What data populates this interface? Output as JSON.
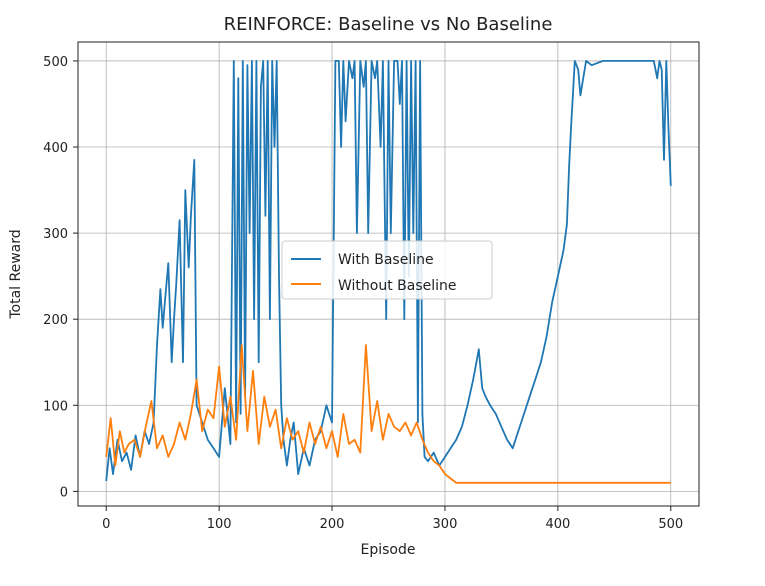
{
  "chart_data": {
    "type": "line",
    "title": "REINFORCE: Baseline vs No Baseline",
    "xlabel": "Episode",
    "ylabel": "Total Reward",
    "xlim": [
      -25,
      525
    ],
    "ylim": [
      -17,
      522
    ],
    "xticks": [
      0,
      100,
      200,
      300,
      400,
      500
    ],
    "yticks": [
      0,
      100,
      200,
      300,
      400,
      500
    ],
    "grid": true,
    "legend_position": "center",
    "series": [
      {
        "name": "With Baseline",
        "color": "#1f77b4",
        "x": [
          0,
          3,
          6,
          10,
          14,
          18,
          22,
          26,
          30,
          34,
          38,
          42,
          45,
          48,
          50,
          52,
          55,
          58,
          60,
          62,
          65,
          68,
          70,
          73,
          75,
          78,
          80,
          85,
          90,
          95,
          100,
          105,
          110,
          113,
          115,
          117,
          119,
          121,
          123,
          125,
          127,
          129,
          131,
          133,
          135,
          137,
          139,
          141,
          143,
          145,
          147,
          149,
          151,
          153,
          155,
          157,
          160,
          163,
          166,
          170,
          175,
          180,
          185,
          190,
          195,
          200,
          203,
          206,
          208,
          210,
          212,
          215,
          218,
          220,
          222,
          225,
          228,
          230,
          232,
          235,
          238,
          240,
          243,
          245,
          248,
          250,
          252,
          255,
          258,
          260,
          262,
          264,
          266,
          268,
          270,
          272,
          274,
          276,
          278,
          280,
          282,
          285,
          290,
          295,
          300,
          305,
          310,
          315,
          320,
          325,
          330,
          333,
          336,
          340,
          345,
          350,
          355,
          360,
          365,
          370,
          375,
          380,
          385,
          390,
          395,
          400,
          405,
          408,
          410,
          412,
          415,
          418,
          420,
          425,
          430,
          440,
          450,
          460,
          470,
          480,
          485,
          488,
          490,
          492,
          494,
          496,
          498,
          500
        ],
        "y": [
          12,
          50,
          20,
          60,
          35,
          45,
          25,
          65,
          40,
          70,
          55,
          80,
          170,
          235,
          190,
          220,
          265,
          150,
          200,
          240,
          315,
          150,
          350,
          260,
          320,
          385,
          100,
          80,
          60,
          50,
          40,
          120,
          55,
          500,
          80,
          480,
          90,
          500,
          110,
          495,
          300,
          500,
          200,
          500,
          150,
          470,
          500,
          320,
          500,
          200,
          500,
          400,
          500,
          250,
          100,
          60,
          30,
          60,
          80,
          20,
          50,
          30,
          60,
          70,
          100,
          80,
          500,
          500,
          400,
          500,
          430,
          500,
          480,
          500,
          300,
          500,
          470,
          500,
          300,
          500,
          480,
          500,
          400,
          500,
          200,
          500,
          300,
          500,
          500,
          450,
          500,
          200,
          500,
          250,
          500,
          300,
          500,
          80,
          500,
          90,
          40,
          35,
          45,
          30,
          40,
          50,
          60,
          75,
          100,
          130,
          165,
          120,
          110,
          100,
          90,
          75,
          60,
          50,
          70,
          90,
          110,
          130,
          150,
          180,
          220,
          250,
          280,
          310,
          380,
          430,
          500,
          490,
          460,
          500,
          495,
          500,
          500,
          500,
          500,
          500,
          500,
          480,
          500,
          490,
          385,
          500,
          420,
          355
        ]
      },
      {
        "name": "Without Baseline",
        "color": "#ff7f0e",
        "x": [
          0,
          4,
          8,
          12,
          16,
          20,
          25,
          30,
          35,
          40,
          45,
          50,
          55,
          60,
          65,
          70,
          75,
          80,
          85,
          90,
          95,
          100,
          105,
          110,
          115,
          120,
          125,
          130,
          135,
          140,
          145,
          150,
          155,
          160,
          165,
          170,
          175,
          180,
          185,
          190,
          195,
          200,
          205,
          210,
          215,
          220,
          225,
          230,
          235,
          240,
          245,
          250,
          255,
          260,
          265,
          270,
          275,
          280,
          285,
          290,
          295,
          300,
          305,
          310,
          320,
          340,
          360,
          380,
          400,
          420,
          440,
          460,
          480,
          500
        ],
        "y": [
          40,
          85,
          30,
          70,
          45,
          55,
          60,
          40,
          75,
          105,
          50,
          65,
          40,
          55,
          80,
          60,
          90,
          130,
          70,
          95,
          85,
          145,
          75,
          110,
          60,
          170,
          70,
          140,
          55,
          110,
          75,
          95,
          50,
          85,
          60,
          70,
          45,
          80,
          55,
          75,
          50,
          70,
          40,
          90,
          55,
          60,
          45,
          170,
          70,
          105,
          60,
          90,
          75,
          70,
          80,
          65,
          80,
          60,
          45,
          35,
          30,
          20,
          15,
          10,
          10,
          10,
          10,
          10,
          10,
          10,
          10,
          10,
          10,
          10
        ]
      }
    ]
  }
}
